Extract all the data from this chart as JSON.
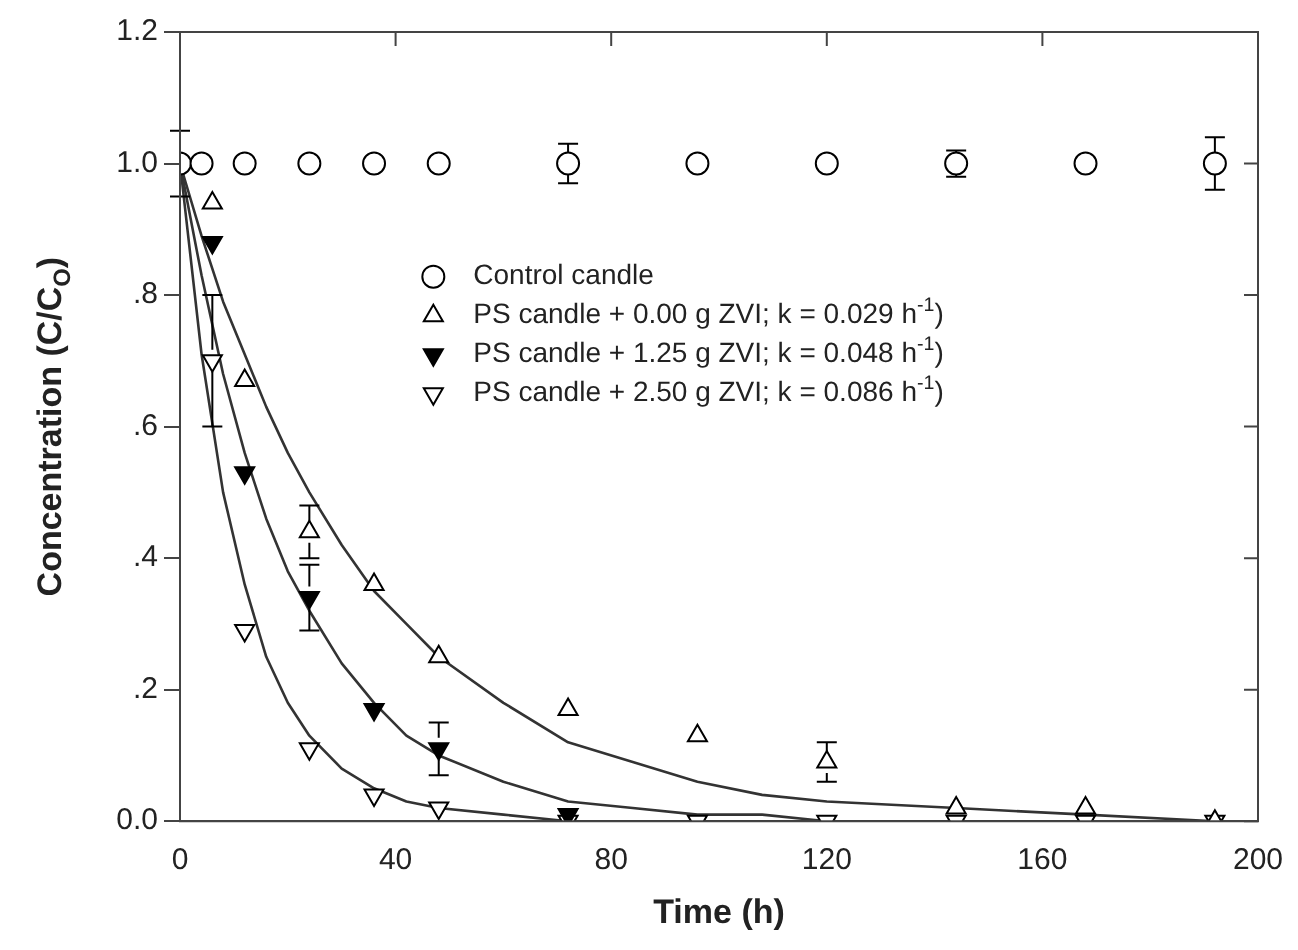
{
  "chart_data": {
    "type": "scatter",
    "xlabel": "Time (h)",
    "ylabel": "Concentration (C/C$_{O}$)",
    "xlim": [
      0,
      200
    ],
    "xticks": [
      0,
      40,
      80,
      120,
      160,
      200
    ],
    "ylim": [
      0,
      1.2
    ],
    "yticks": [
      {
        "value": 0,
        "label": "0.0"
      },
      {
        "value": 0.2,
        "label": ".2"
      },
      {
        "value": 0.4,
        "label": ".4"
      },
      {
        "value": 0.6,
        "label": ".6"
      },
      {
        "value": 0.8,
        "label": ".8"
      },
      {
        "value": 1.0,
        "label": "1.0"
      },
      {
        "value": 1.2,
        "label": "1.2"
      }
    ],
    "grid": false,
    "legend": "right",
    "series": [
      {
        "name": "Control candle",
        "color": "#ffffff",
        "marker": "circle",
        "x": [
          0,
          4,
          12,
          24,
          36,
          48,
          72,
          96,
          120,
          144,
          168,
          192
        ],
        "values": [
          1.0,
          1.0,
          1.0,
          1.0,
          1.0,
          1.0,
          1.0,
          1.0,
          1.0,
          1.0,
          1.0,
          1.0
        ],
        "errors": [
          0.05,
          null,
          null,
          null,
          null,
          null,
          0.03,
          null,
          null,
          0.02,
          null,
          0.04
        ]
      },
      {
        "name": "PS candle + 0.00 g ZVI; k = 0.029 h$^{-1}$)",
        "color": "#ffffff",
        "marker": "triangle",
        "x": [
          6,
          12,
          24,
          36,
          48,
          72,
          96,
          120,
          144,
          168,
          192
        ],
        "values": [
          0.94,
          0.67,
          0.44,
          0.36,
          0.25,
          0.17,
          0.13,
          0.09,
          0.02,
          0.02,
          0.0
        ],
        "errors": [
          null,
          null,
          0.04,
          null,
          null,
          null,
          null,
          0.03,
          null,
          null,
          null
        ]
      },
      {
        "name": "PS candle + 1.25 g ZVI; k = 0.048 h$^{-1}$)",
        "color": "#000000",
        "marker": "triangle-down",
        "x": [
          6,
          12,
          24,
          36,
          48,
          72
        ],
        "values": [
          0.88,
          0.53,
          0.34,
          0.17,
          0.11,
          0.01
        ],
        "errors": [
          null,
          null,
          0.05,
          null,
          0.04,
          null
        ]
      },
      {
        "name": "PS candle + 2.50 g ZVI; k = 0.086 h$^{-1}$)",
        "color": "#ffffff",
        "marker": "triangle-down",
        "x": [
          6,
          12,
          24,
          36,
          48,
          72,
          96,
          120,
          144,
          168,
          192
        ],
        "values": [
          0.7,
          0.29,
          0.11,
          0.04,
          0.02,
          0.0,
          0.0,
          0.0,
          0.0,
          0.0,
          0.0
        ],
        "errors": [
          0.1,
          null,
          null,
          null,
          null,
          null,
          null,
          null,
          null,
          null,
          null
        ]
      },
      {
        "type": "line",
        "color": "#333333",
        "marker": "none",
        "x": [
          0,
          4,
          8,
          12,
          16,
          20,
          24,
          30,
          36,
          42,
          48,
          60,
          72,
          84,
          96,
          108,
          120,
          144,
          168,
          192
        ],
        "values": [
          1.0,
          0.89,
          0.79,
          0.71,
          0.63,
          0.56,
          0.5,
          0.42,
          0.35,
          0.3,
          0.25,
          0.18,
          0.12,
          0.09,
          0.06,
          0.04,
          0.03,
          0.02,
          0.01,
          0.0
        ]
      },
      {
        "type": "line",
        "color": "#333333",
        "marker": "none",
        "x": [
          0,
          4,
          8,
          12,
          16,
          20,
          24,
          30,
          36,
          42,
          48,
          60,
          72,
          84,
          96,
          108,
          120,
          144,
          168
        ],
        "values": [
          1.0,
          0.83,
          0.68,
          0.56,
          0.46,
          0.38,
          0.32,
          0.24,
          0.18,
          0.13,
          0.1,
          0.06,
          0.03,
          0.02,
          0.01,
          0.01,
          0.0,
          0.0,
          0.0
        ]
      },
      {
        "type": "line",
        "color": "#333333",
        "marker": "none",
        "x": [
          0,
          4,
          8,
          12,
          16,
          20,
          24,
          30,
          36,
          42,
          48,
          60,
          72,
          84,
          96,
          108,
          120
        ],
        "values": [
          1.0,
          0.71,
          0.5,
          0.36,
          0.25,
          0.18,
          0.13,
          0.08,
          0.05,
          0.03,
          0.02,
          0.01,
          0.0,
          0.0,
          0.0,
          0.0,
          0.0
        ]
      }
    ]
  }
}
